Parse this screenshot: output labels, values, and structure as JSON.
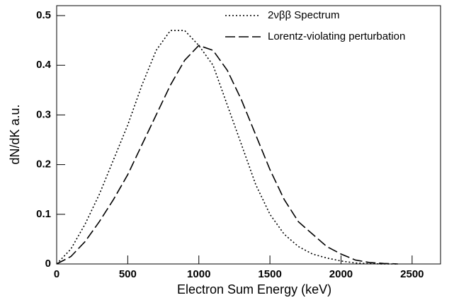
{
  "chart_data": {
    "type": "line",
    "x_label": "Electron Sum Energy (keV)",
    "y_label": "dN/dK a.u.",
    "x": [
      0,
      100,
      200,
      300,
      400,
      500,
      600,
      700,
      800,
      900,
      1000,
      1100,
      1200,
      1300,
      1400,
      1500,
      1600,
      1700,
      1800,
      1900,
      2000,
      2100,
      2200,
      2300,
      2400
    ],
    "series": [
      {
        "name": "2νββ Spectrum",
        "color": "#000000",
        "dash": "dotted",
        "values": [
          0,
          0.03,
          0.08,
          0.14,
          0.21,
          0.28,
          0.36,
          0.43,
          0.47,
          0.47,
          0.44,
          0.4,
          0.32,
          0.24,
          0.16,
          0.1,
          0.06,
          0.035,
          0.02,
          0.012,
          0.006,
          0.002,
          0.0005,
          0,
          0
        ]
      },
      {
        "name": "Lorentz-violating perturbation",
        "color": "#000000",
        "dash": "dashed",
        "values": [
          0,
          0.015,
          0.045,
          0.085,
          0.13,
          0.18,
          0.24,
          0.3,
          0.36,
          0.41,
          0.44,
          0.43,
          0.39,
          0.33,
          0.26,
          0.19,
          0.13,
          0.085,
          0.06,
          0.035,
          0.02,
          0.008,
          0.003,
          0.001,
          0
        ]
      }
    ],
    "xlim": [
      0,
      2700
    ],
    "xticks": [
      0,
      500,
      1000,
      1500,
      2000,
      2500
    ],
    "ylim": [
      0,
      0.52
    ],
    "yticks": [
      0,
      0.1,
      0.2,
      0.3,
      0.4,
      0.5
    ],
    "legend": "upper right"
  }
}
